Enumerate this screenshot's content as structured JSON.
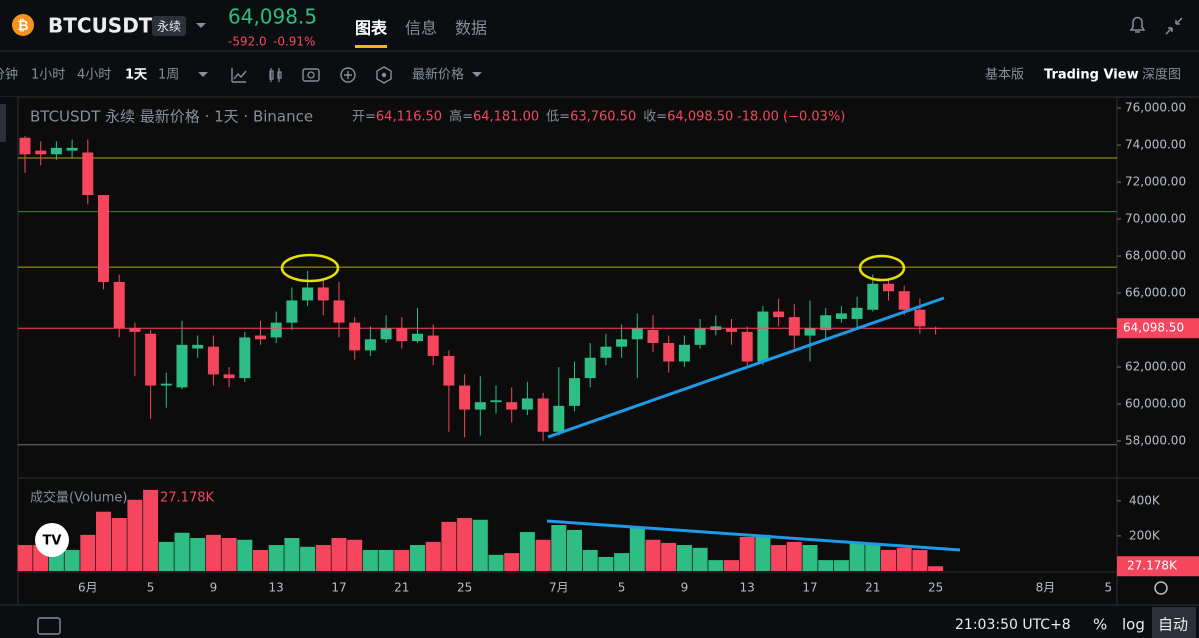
{
  "header": {
    "symbol": "BTCUSDT",
    "contract": "永续",
    "price": "64,098.5",
    "change": "-592.0",
    "change_pct": "-0.91%",
    "tabs": [
      "图表",
      "信息",
      "数据"
    ]
  },
  "toolbar": {
    "intervals": [
      "分钟",
      "1小时",
      "4小时",
      "1天",
      "1周"
    ],
    "price_type": "最新价格",
    "views": [
      "基本版",
      "Trading View",
      "深度图"
    ]
  },
  "legend": {
    "title": "BTCUSDT 永续 最新价格 · 1天 · Binance",
    "items": [
      {
        "label": "开=",
        "value": "64,116.50"
      },
      {
        "label": "高=",
        "value": "64,181.00"
      },
      {
        "label": "低=",
        "value": "63,760.50"
      },
      {
        "label": "收=",
        "value": "64,098.50"
      }
    ],
    "change": "-18.00 (−0.03%)"
  },
  "chart_data": {
    "type": "candlestick",
    "categories": [
      null,
      null,
      null,
      null,
      "6月",
      null,
      null,
      null,
      "5",
      null,
      null,
      null,
      "9",
      null,
      null,
      null,
      "13",
      null,
      null,
      null,
      "17",
      null,
      null,
      null,
      "21",
      null,
      null,
      null,
      "25",
      null,
      null,
      null,
      null,
      null,
      "7月",
      null,
      null,
      null,
      "5",
      null,
      null,
      null,
      "9",
      null,
      null,
      null,
      "13",
      null,
      null,
      null,
      "17",
      null,
      null,
      null,
      "21",
      null,
      null,
      null,
      "25",
      null,
      null,
      null,
      null,
      null,
      null,
      "8月",
      null,
      null,
      null,
      "5"
    ],
    "open": [
      74400,
      73700,
      73500,
      73700,
      73600,
      71300,
      66600,
      64100,
      63800,
      61000,
      60900,
      63000,
      63100,
      61600,
      61400,
      63700,
      63600,
      64400,
      65600,
      66300,
      65600,
      64400,
      62900,
      63500,
      64100,
      63400,
      63700,
      62600,
      61000,
      59700,
      60100,
      60100,
      59700,
      60300,
      58500,
      59900,
      61400,
      62500,
      63100,
      63500,
      64000,
      63300,
      62300,
      63200,
      64000,
      64100,
      63900,
      62300,
      65000,
      64700,
      63700,
      64000,
      64600,
      64600,
      65100,
      66500,
      66100,
      65100,
      64116.5,
      null,
      null,
      null,
      null,
      null,
      null,
      null,
      null,
      null,
      null,
      null
    ],
    "high": [
      74500,
      74200,
      74200,
      74300,
      74300,
      71300,
      67000,
      64400,
      64000,
      61700,
      64500,
      63700,
      63700,
      62000,
      63900,
      64500,
      65000,
      66300,
      67200,
      66700,
      66600,
      64700,
      64200,
      64800,
      64700,
      65200,
      64300,
      62900,
      61600,
      61500,
      61000,
      60900,
      61200,
      60600,
      62000,
      62300,
      63300,
      63800,
      64300,
      64900,
      64800,
      63700,
      63700,
      64600,
      64800,
      64600,
      64200,
      65300,
      65700,
      65400,
      65600,
      65200,
      65300,
      65800,
      67000,
      66800,
      66400,
      65700,
      64181,
      null,
      null,
      null,
      null,
      null,
      null,
      null,
      null,
      null,
      null,
      null
    ],
    "low": [
      72500,
      72900,
      73200,
      73300,
      70800,
      66200,
      63600,
      61500,
      59200,
      59800,
      60800,
      62500,
      61000,
      60900,
      61200,
      63200,
      63300,
      64000,
      65300,
      64800,
      63600,
      62400,
      62600,
      63300,
      63000,
      63300,
      62100,
      58500,
      58200,
      58300,
      59500,
      59000,
      59400,
      58000,
      58300,
      59600,
      60900,
      62100,
      62500,
      61400,
      62800,
      61700,
      62000,
      63000,
      63700,
      63200,
      62100,
      62100,
      64200,
      63000,
      62300,
      63500,
      64400,
      64000,
      65000,
      65600,
      64800,
      63800,
      63760.5,
      null,
      null,
      null,
      null,
      null,
      null,
      null,
      null,
      null,
      null,
      null
    ],
    "close": [
      73500,
      73500,
      73850,
      73850,
      71300,
      66600,
      64100,
      63900,
      61000,
      61100,
      63200,
      63200,
      61600,
      61400,
      63600,
      63500,
      64400,
      65600,
      66300,
      65600,
      64400,
      62900,
      63500,
      64100,
      63400,
      63800,
      62600,
      61000,
      59700,
      60100,
      60200,
      59700,
      60300,
      58500,
      59900,
      61400,
      62500,
      63100,
      63500,
      64100,
      63300,
      62300,
      63200,
      64100,
      64200,
      63900,
      62300,
      65000,
      64700,
      63700,
      64100,
      64800,
      64900,
      65200,
      66500,
      66100,
      65100,
      64200,
      64098.5,
      null,
      null,
      null,
      null,
      null,
      null,
      null,
      null,
      null,
      null,
      null
    ],
    "ylim": [
      56000,
      76600
    ],
    "yticks": [
      {
        "value": 58000,
        "label": "58,000.00"
      },
      {
        "value": 60000,
        "label": "60,000.00"
      },
      {
        "value": 62000,
        "label": "62,000.00"
      },
      {
        "value": 64000,
        "label": "64,000.00"
      },
      {
        "value": 66000,
        "label": "66,000.00"
      },
      {
        "value": 68000,
        "label": "68,000.00"
      },
      {
        "value": 70000,
        "label": "70,000.00"
      },
      {
        "value": 72000,
        "label": "72,000.00"
      },
      {
        "value": 74000,
        "label": "74,000.00"
      },
      {
        "value": 76000,
        "label": "76,000.00"
      }
    ],
    "grid": false,
    "up_color": "#2ebd85",
    "down_color": "#f6465d",
    "h_lines": [
      {
        "value": 73300,
        "color": "#b5a21a"
      },
      {
        "value": 70400,
        "color": "#2e8b3a"
      },
      {
        "value": 67400,
        "color": "#b5a21a"
      },
      {
        "value": 57800,
        "color": "#6b6f76"
      }
    ],
    "volume": {
      "title": "成交量(Volume)",
      "last_label": "27.178K",
      "values": [
        148000,
        148000,
        120000,
        120000,
        206000,
        338000,
        302000,
        406000,
        462000,
        166000,
        218000,
        188000,
        206000,
        188000,
        178000,
        120000,
        148000,
        188000,
        138000,
        148000,
        188000,
        178000,
        120000,
        120000,
        120000,
        148000,
        166000,
        280000,
        302000,
        292000,
        92000,
        102000,
        222000,
        178000,
        262000,
        234000,
        120000,
        80000,
        102000,
        246000,
        178000,
        160000,
        148000,
        132000,
        62000,
        62000,
        194000,
        206000,
        148000,
        166000,
        148000,
        62000,
        62000,
        166000,
        160000,
        120000,
        132000,
        120000,
        27178,
        null,
        null,
        null,
        null,
        null,
        null,
        null,
        null,
        null,
        null,
        null
      ],
      "ylim": [
        0,
        530000
      ],
      "yticks": [
        {
          "value": 200000,
          "label": "200K"
        },
        {
          "value": 400000,
          "label": "400K"
        }
      ]
    }
  },
  "footer": {
    "time": "21:03:50 UTC+8",
    "percent": "%",
    "log": "log",
    "auto": "自动"
  }
}
